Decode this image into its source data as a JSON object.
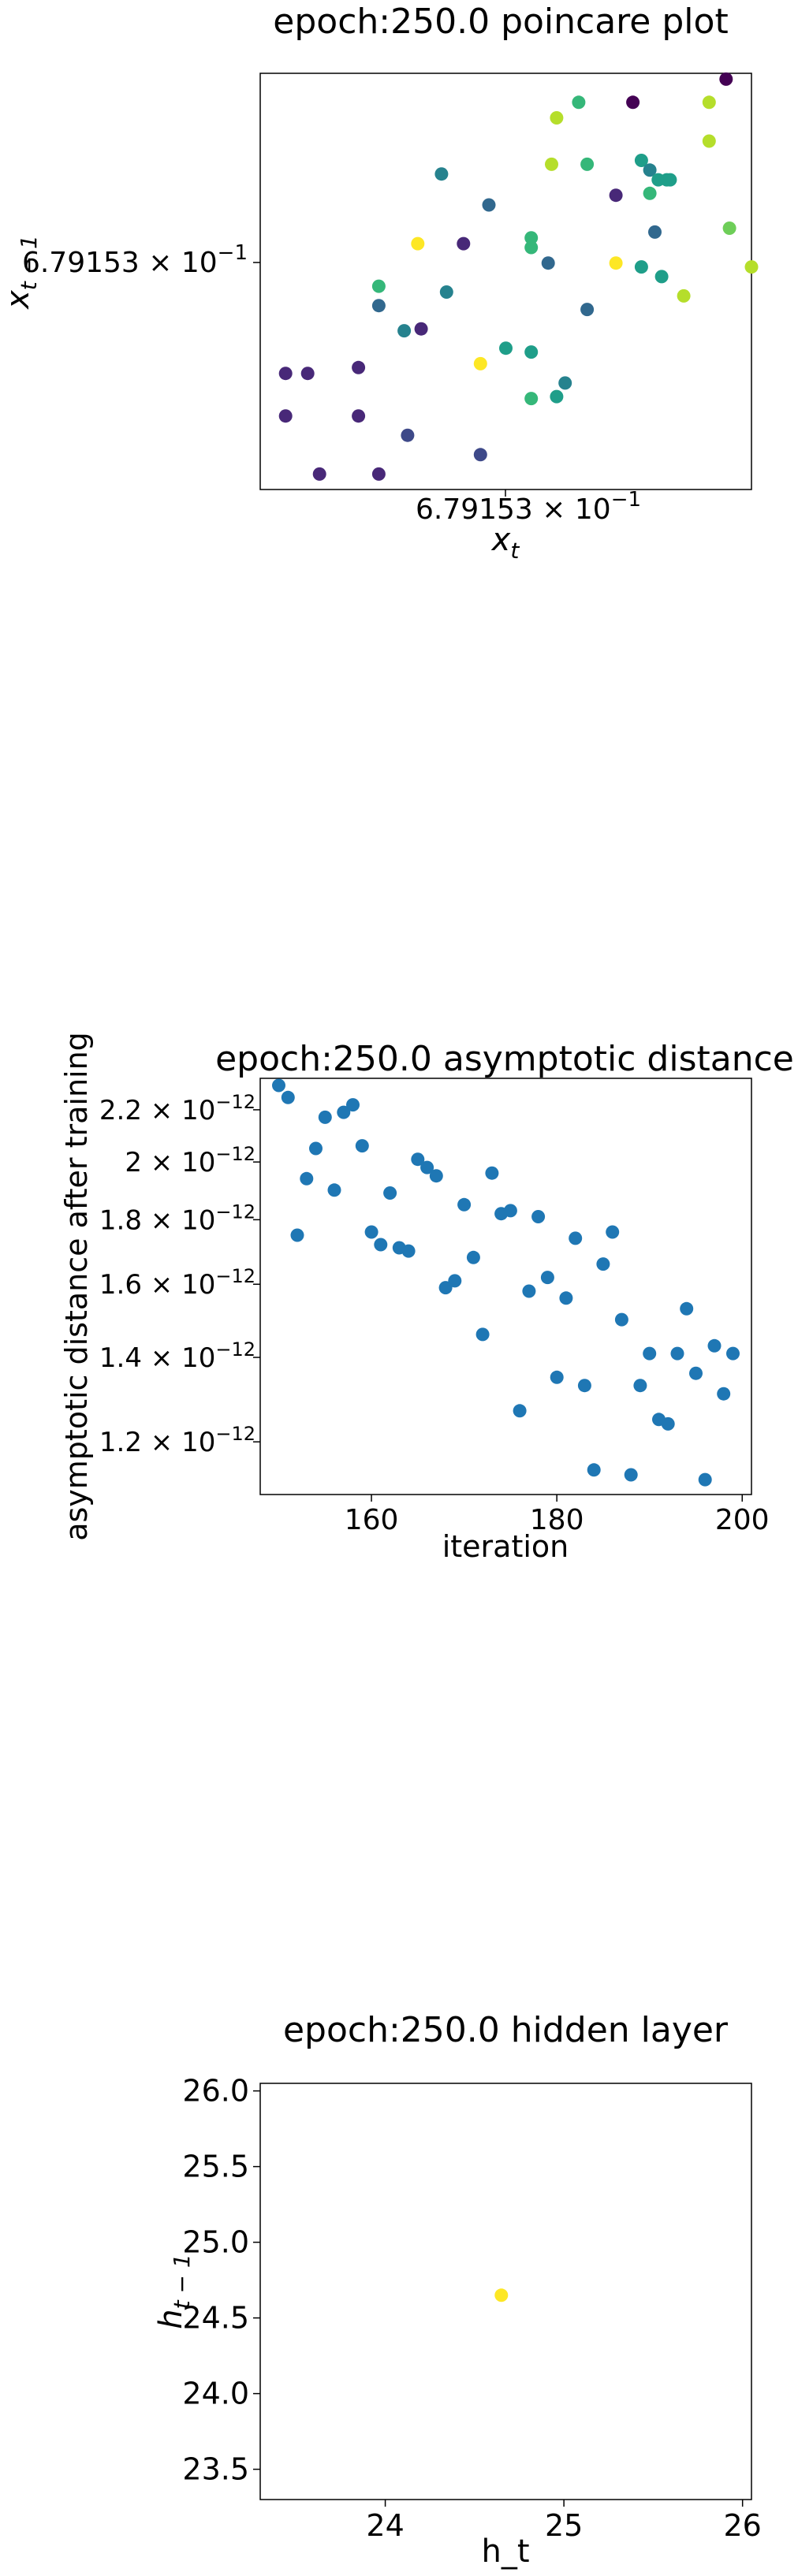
{
  "chart_data": [
    {
      "type": "scatter",
      "title": "epoch:250.0 poincare plot",
      "xlabel": "x_t",
      "ylabel": "x_{t-1}",
      "x_tick_label": "6.79153 × 10^{-1}",
      "y_tick_label": "6.79153 × 10^{-1}",
      "x_tick_value": 0.679153,
      "y_tick_value": 0.679153,
      "colormap": "viridis",
      "note_units": "offsets in 1e-9 from 0.679153",
      "xlim": [
        -1.15,
        1.75
      ],
      "ylim": [
        -1.15,
        1.0
      ],
      "points": [
        {
          "x": -1.0,
          "y": -0.55,
          "c": 0.15
        },
        {
          "x": -0.87,
          "y": -0.55,
          "c": 0.15
        },
        {
          "x": -0.57,
          "y": -0.52,
          "c": 0.1
        },
        {
          "x": -1.0,
          "y": -0.77,
          "c": 0.15
        },
        {
          "x": -0.57,
          "y": -0.77,
          "c": 0.15
        },
        {
          "x": -0.28,
          "y": -0.87,
          "c": 0.2
        },
        {
          "x": -0.8,
          "y": -1.07,
          "c": 0.15
        },
        {
          "x": -0.45,
          "y": -1.07,
          "c": 0.15
        },
        {
          "x": 0.15,
          "y": -0.97,
          "c": 0.2
        },
        {
          "x": -0.45,
          "y": -0.2,
          "c": 0.3
        },
        {
          "x": -0.3,
          "y": -0.33,
          "c": 0.45
        },
        {
          "x": -0.2,
          "y": -0.32,
          "c": 0.1
        },
        {
          "x": -0.45,
          "y": -0.1,
          "c": 0.7
        },
        {
          "x": -0.05,
          "y": -0.13,
          "c": 0.45
        },
        {
          "x": -0.22,
          "y": 0.12,
          "c": 0.95
        },
        {
          "x": -0.08,
          "y": 0.48,
          "c": 0.48
        },
        {
          "x": 0.2,
          "y": 0.32,
          "c": 0.35
        },
        {
          "x": 0.05,
          "y": 0.12,
          "c": 0.1
        },
        {
          "x": 0.45,
          "y": 0.15,
          "c": 0.7
        },
        {
          "x": 0.45,
          "y": 0.1,
          "c": 0.62
        },
        {
          "x": 0.15,
          "y": -0.5,
          "c": 0.95
        },
        {
          "x": 0.3,
          "y": -0.42,
          "c": 0.5
        },
        {
          "x": 0.45,
          "y": -0.44,
          "c": 0.5
        },
        {
          "x": 0.6,
          "y": -0.67,
          "c": 0.5
        },
        {
          "x": 0.65,
          "y": -0.6,
          "c": 0.45
        },
        {
          "x": 0.45,
          "y": -0.68,
          "c": 0.72
        },
        {
          "x": 0.55,
          "y": 0.02,
          "c": 0.38
        },
        {
          "x": 0.78,
          "y": -0.22,
          "c": 0.35
        },
        {
          "x": 0.95,
          "y": 0.02,
          "c": 0.95
        },
        {
          "x": 1.1,
          "y": 0.55,
          "c": 0.55
        },
        {
          "x": 1.15,
          "y": 0.5,
          "c": 0.48
        },
        {
          "x": 1.15,
          "y": 0.38,
          "c": 0.65
        },
        {
          "x": 1.1,
          "y": 0.0,
          "c": 0.55
        },
        {
          "x": 0.73,
          "y": 0.85,
          "c": 0.65
        },
        {
          "x": 0.6,
          "y": 0.77,
          "c": 0.88
        },
        {
          "x": 0.57,
          "y": 0.53,
          "c": 0.88
        },
        {
          "x": 0.78,
          "y": 0.53,
          "c": 0.65
        },
        {
          "x": 1.05,
          "y": 0.85,
          "c": 0.05
        },
        {
          "x": 0.95,
          "y": 0.37,
          "c": 0.1
        },
        {
          "x": 1.2,
          "y": 0.45,
          "c": 0.52
        },
        {
          "x": 1.25,
          "y": 0.45,
          "c": 0.58
        },
        {
          "x": 1.27,
          "y": 0.45,
          "c": 0.55
        },
        {
          "x": 1.18,
          "y": 0.18,
          "c": 0.35
        },
        {
          "x": 1.22,
          "y": -0.05,
          "c": 0.52
        },
        {
          "x": 1.35,
          "y": -0.15,
          "c": 0.85
        },
        {
          "x": 1.5,
          "y": 0.85,
          "c": 0.9
        },
        {
          "x": 1.6,
          "y": 0.97,
          "c": 0.05
        },
        {
          "x": 1.5,
          "y": 0.65,
          "c": 0.88
        },
        {
          "x": 1.62,
          "y": 0.2,
          "c": 0.78
        },
        {
          "x": 1.75,
          "y": 0.0,
          "c": 0.9
        }
      ]
    },
    {
      "type": "scatter",
      "title": "epoch:250.0 asymptotic distance",
      "xlabel": "iteration",
      "ylabel": "asymptotic distance after training",
      "yscale": "log",
      "xlim": [
        148,
        201
      ],
      "ylim": [
        1.09e-12,
        2.33e-12
      ],
      "xticks": [
        160,
        180,
        200
      ],
      "yticks": [
        {
          "value": 2.2e-12,
          "label": "2.2 × 10^{-12}"
        },
        {
          "value": 2e-12,
          "label": "2 × 10^{-12}"
        },
        {
          "value": 1.8e-12,
          "label": "1.8 × 10^{-12}"
        },
        {
          "value": 1.6e-12,
          "label": "1.6 × 10^{-12}"
        },
        {
          "value": 1.4e-12,
          "label": "1.4 × 10^{-12}"
        },
        {
          "value": 1.2e-12,
          "label": "1.2 × 10^{-12}"
        }
      ],
      "color": "#1f77b4",
      "x": [
        150,
        151,
        152,
        153,
        154,
        155,
        156,
        157,
        158,
        159,
        160,
        161,
        162,
        163,
        164,
        165,
        166,
        167,
        168,
        169,
        170,
        171,
        172,
        173,
        174,
        175,
        176,
        177,
        178,
        179,
        180,
        181,
        182,
        183,
        184,
        185,
        186,
        187,
        188,
        189,
        190,
        191,
        192,
        193,
        194,
        195,
        196,
        197,
        198,
        199
      ],
      "y": [
        2.3e-12,
        2.25e-12,
        1.75e-12,
        1.94e-12,
        2.05e-12,
        2.17e-12,
        1.9e-12,
        2.19e-12,
        2.22e-12,
        2.06e-12,
        1.76e-12,
        1.72e-12,
        1.89e-12,
        1.71e-12,
        1.7e-12,
        2.01e-12,
        1.98e-12,
        1.95e-12,
        1.59e-12,
        1.61e-12,
        1.85e-12,
        1.68e-12,
        1.46e-12,
        1.96e-12,
        1.82e-12,
        1.83e-12,
        1.27e-12,
        1.58e-12,
        1.81e-12,
        1.62e-12,
        1.35e-12,
        1.56e-12,
        1.74e-12,
        1.33e-12,
        1.14e-12,
        1.66e-12,
        1.76e-12,
        1.5e-12,
        1.13e-12,
        1.33e-12,
        1.41e-12,
        1.25e-12,
        1.24e-12,
        1.41e-12,
        1.53e-12,
        1.36e-12,
        1.12e-12,
        1.43e-12,
        1.31e-12,
        1.41e-12
      ]
    },
    {
      "type": "scatter",
      "title": "epoch:250.0 hidden layer",
      "xlabel": "h_t",
      "ylabel": "h_{t-1}",
      "xlim": [
        23.3,
        26.05
      ],
      "ylim": [
        23.3,
        26.05
      ],
      "xticks": [
        24,
        25,
        26
      ],
      "yticks": [
        23.5,
        24.0,
        24.5,
        25.0,
        25.5,
        26.0
      ],
      "ytick_labels": [
        "23.5",
        "24.0",
        "24.5",
        "25.0",
        "25.5",
        "26.0"
      ],
      "points": [
        {
          "x": 24.65,
          "y": 24.65,
          "color": "#fde725"
        }
      ]
    }
  ]
}
